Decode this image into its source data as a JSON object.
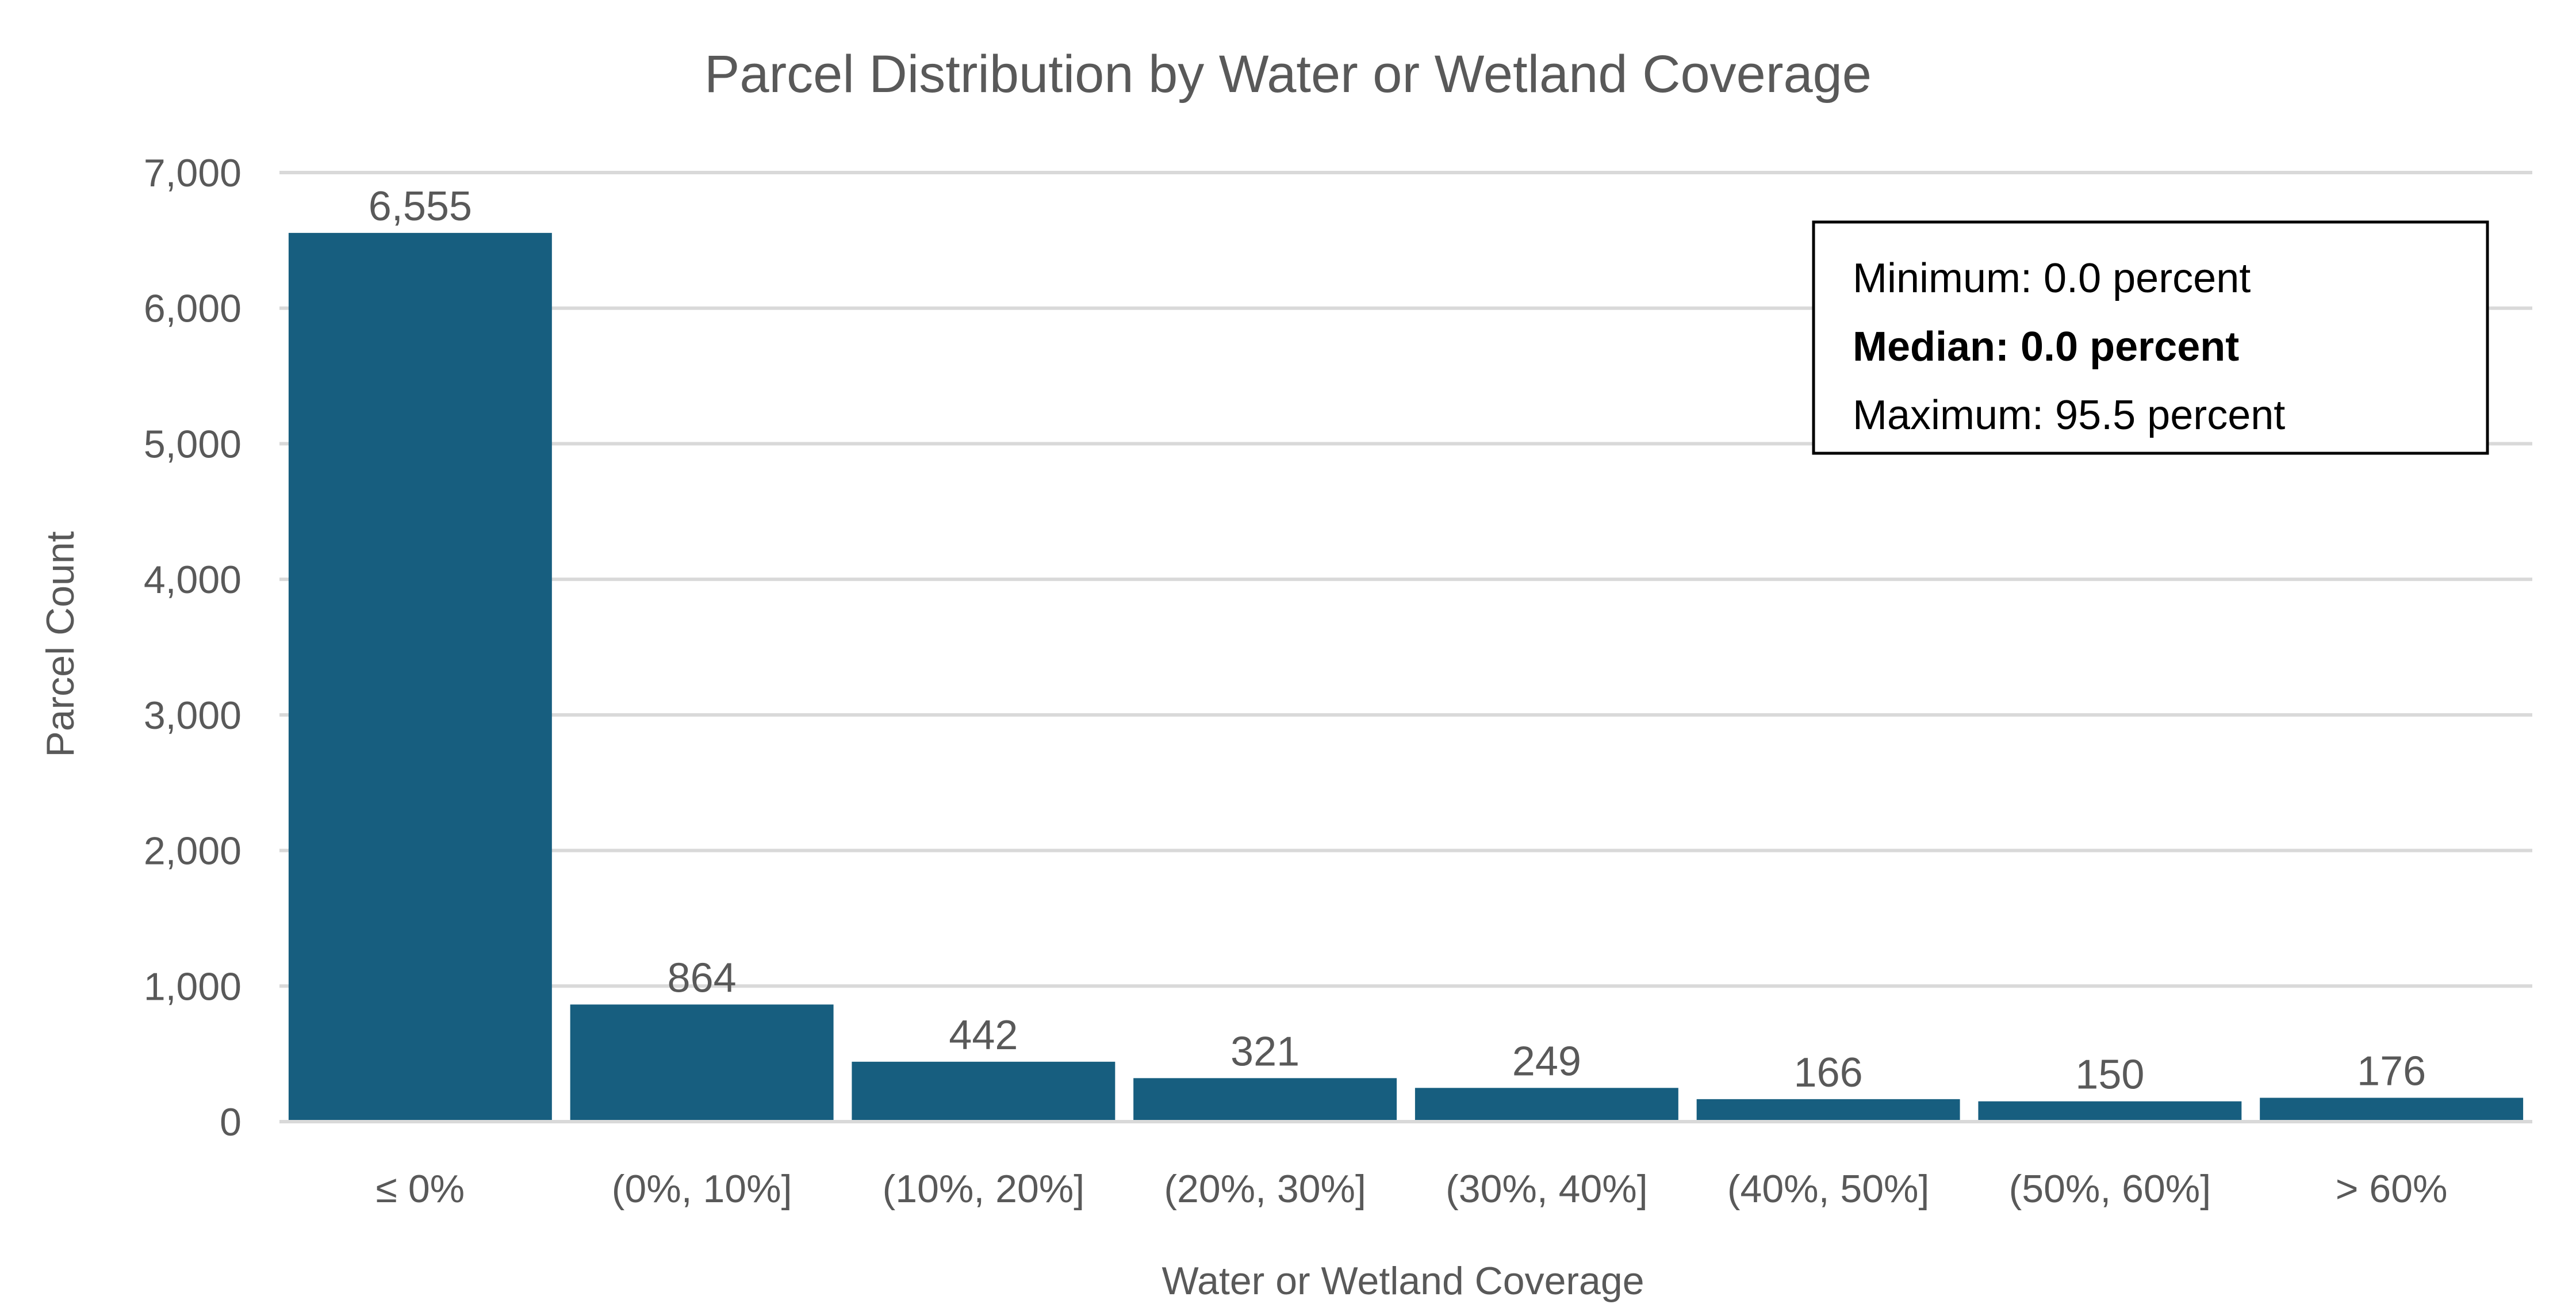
{
  "chart_data": {
    "type": "bar",
    "title": "Parcel Distribution by Water or Wetland Coverage",
    "xlabel": "Water or Wetland Coverage",
    "ylabel": "Parcel Count",
    "categories": [
      "≤ 0%",
      "(0%, 10%]",
      "(10%, 20%]",
      "(20%, 30%]",
      "(30%, 40%]",
      "(40%, 50%]",
      "(50%, 60%]",
      "> 60%"
    ],
    "values": [
      6555,
      864,
      442,
      321,
      249,
      166,
      150,
      176
    ],
    "data_labels": [
      "6,555",
      "864",
      "442",
      "321",
      "249",
      "166",
      "150",
      "176"
    ],
    "ylim": [
      0,
      7000
    ],
    "y_ticks": [
      0,
      1000,
      2000,
      3000,
      4000,
      5000,
      6000,
      7000
    ],
    "y_tick_labels": [
      "0",
      "1,000",
      "2,000",
      "3,000",
      "4,000",
      "5,000",
      "6,000",
      "7,000"
    ],
    "grid": true,
    "legend": "none",
    "bar_color": "#175E7F",
    "gridline_color": "#D9D9D9",
    "text_color": "#595959",
    "annotation": {
      "minimum": "Minimum: 0.0 percent",
      "median": "Median: 0.0 percent",
      "maximum": "Maximum: 95.5 percent"
    }
  }
}
